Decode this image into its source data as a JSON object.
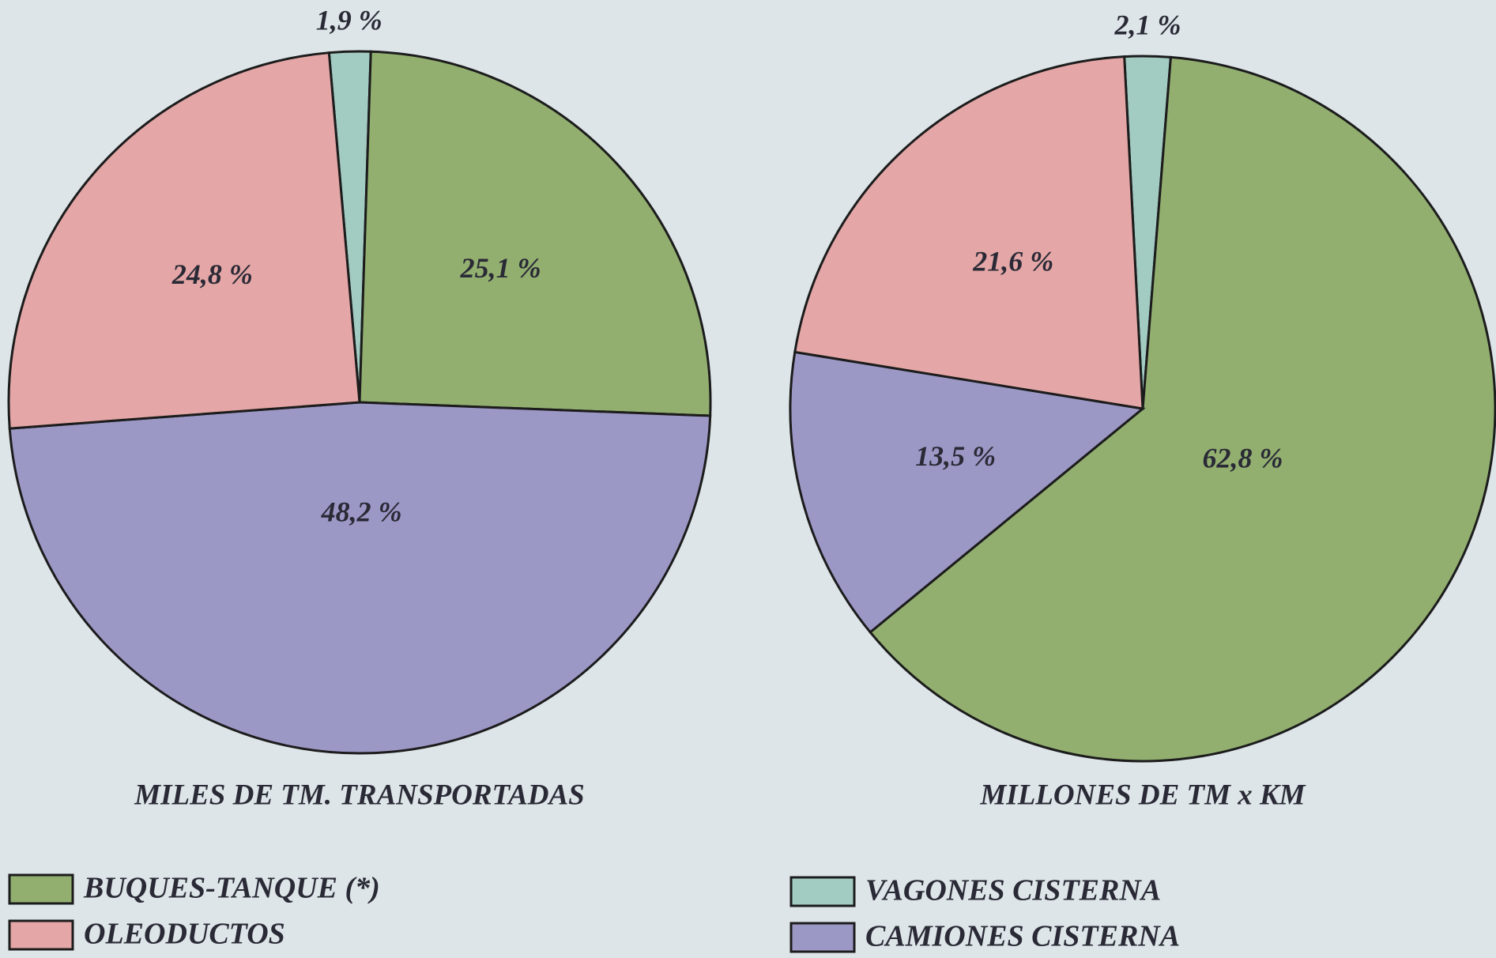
{
  "chart_data": [
    {
      "type": "pie",
      "title": "MILES DE TM. TRANSPORTADAS",
      "categories": [
        "VAGONES CISTERNA",
        "BUQUES-TANQUE (*)",
        "CAMIONES CISTERNA",
        "OLEODUCTOS"
      ],
      "values": [
        1.9,
        25.1,
        48.2,
        24.8
      ],
      "value_labels": [
        "1,9 %",
        "25,1 %",
        "48,2 %",
        "24,8 %"
      ],
      "colors": [
        "#a2cbc2",
        "#92af70",
        "#9c98c6",
        "#e4a6a6"
      ]
    },
    {
      "type": "pie",
      "title": "MILLONES DE TM x KM",
      "categories": [
        "VAGONES CISTERNA",
        "BUQUES-TANQUE (*)",
        "CAMIONES CISTERNA",
        "OLEODUCTOS"
      ],
      "values": [
        2.1,
        62.8,
        13.5,
        21.6
      ],
      "value_labels": [
        "2,1 %",
        "62,8 %",
        "13,5 %",
        "21,6 %"
      ],
      "colors": [
        "#a2cbc2",
        "#92af70",
        "#9c98c6",
        "#e4a6a6"
      ]
    }
  ],
  "legend": {
    "items": [
      {
        "name": "BUQUES-TANQUE (*)",
        "color": "#92af70"
      },
      {
        "name": "OLEODUCTOS",
        "color": "#e4a6a6"
      },
      {
        "name": "VAGONES CISTERNA",
        "color": "#a2cbc2"
      },
      {
        "name": "CAMIONES CISTERNA",
        "color": "#9c98c6"
      }
    ]
  }
}
